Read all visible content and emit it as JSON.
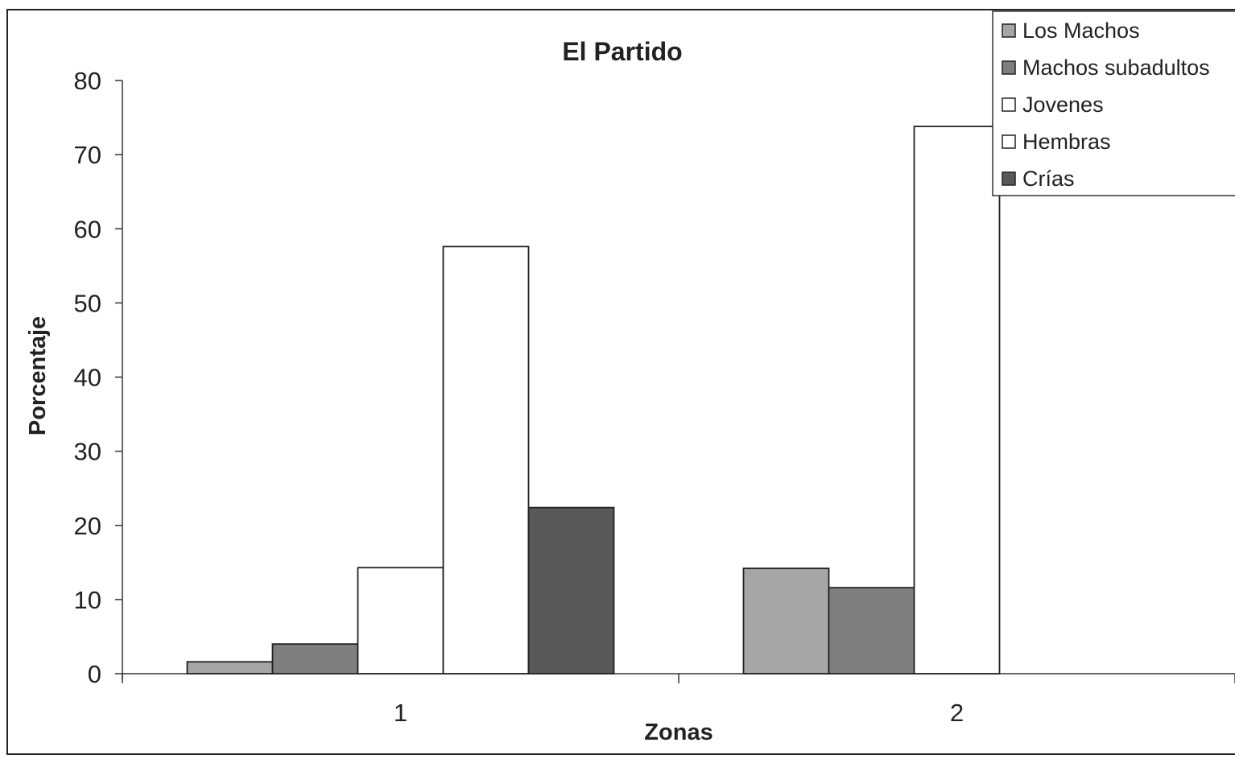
{
  "chart_data": {
    "type": "bar",
    "title": "El Partido",
    "xlabel": "Zonas",
    "ylabel": "Porcentaje",
    "categories": [
      "1",
      "2"
    ],
    "ylim": [
      0,
      80
    ],
    "yticks": [
      0,
      10,
      20,
      30,
      40,
      50,
      60,
      70,
      80
    ],
    "grid": false,
    "legend_position": "top-right",
    "series": [
      {
        "name": "Los Machos",
        "values": [
          1.6,
          14.2
        ],
        "color": "#a6a6a6"
      },
      {
        "name": "Machos subadultos",
        "values": [
          4.0,
          11.6
        ],
        "color": "#7f7f7f"
      },
      {
        "name": "Jovenes",
        "values": [
          14.3,
          73.8
        ],
        "color": "#ffffff"
      },
      {
        "name": "Hembras",
        "values": [
          57.6,
          0
        ],
        "color": "#ffffff"
      },
      {
        "name": "Crías",
        "values": [
          22.4,
          0
        ],
        "color": "#595959"
      }
    ]
  }
}
